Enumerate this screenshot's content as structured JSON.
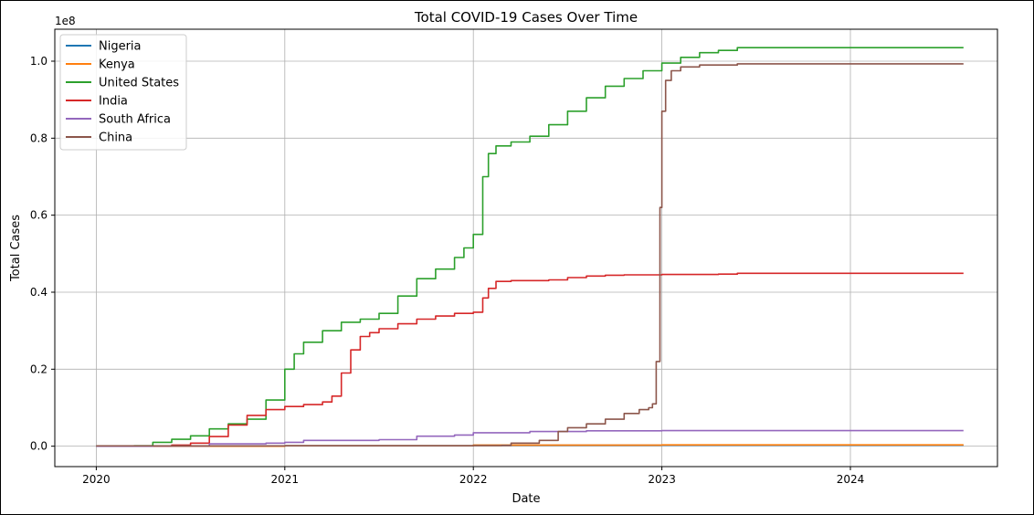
{
  "chart_data": {
    "type": "line",
    "title": "Total COVID-19 Cases Over Time",
    "xlabel": "Date",
    "ylabel": "Total Cases",
    "y_scale_label": "1e8",
    "xlim": [
      2019.78,
      2024.78
    ],
    "ylim": [
      -0.053,
      1.083
    ],
    "x_ticks": [
      2020,
      2021,
      2022,
      2023,
      2024
    ],
    "x_tick_labels": [
      "2020",
      "2021",
      "2022",
      "2023",
      "2024"
    ],
    "y_ticks": [
      0.0,
      0.2,
      0.4,
      0.6,
      0.8,
      1.0
    ],
    "y_tick_labels": [
      "0.0",
      "0.2",
      "0.4",
      "0.6",
      "0.8",
      "1.0"
    ],
    "grid": true,
    "legend_position": "top-left",
    "series": [
      {
        "name": "Nigeria",
        "color": "#1f77b4",
        "x": [
          2020.0,
          2021.0,
          2022.0,
          2023.0,
          2024.6
        ],
        "y": [
          0.0,
          0.001,
          0.0025,
          0.0027,
          0.0027
        ]
      },
      {
        "name": "Kenya",
        "color": "#ff7f0e",
        "x": [
          2020.0,
          2021.0,
          2022.0,
          2023.0,
          2024.6
        ],
        "y": [
          0.0,
          0.001,
          0.003,
          0.0034,
          0.0034
        ]
      },
      {
        "name": "United States",
        "color": "#2ca02c",
        "x": [
          2020.0,
          2020.2,
          2020.3,
          2020.4,
          2020.5,
          2020.6,
          2020.7,
          2020.8,
          2020.9,
          2021.0,
          2021.05,
          2021.1,
          2021.2,
          2021.3,
          2021.4,
          2021.5,
          2021.6,
          2021.7,
          2021.8,
          2021.9,
          2021.95,
          2022.0,
          2022.05,
          2022.08,
          2022.12,
          2022.2,
          2022.3,
          2022.4,
          2022.5,
          2022.6,
          2022.7,
          2022.8,
          2022.9,
          2023.0,
          2023.1,
          2023.2,
          2023.3,
          2023.4,
          2024.6
        ],
        "y": [
          0.0,
          0.001,
          0.01,
          0.018,
          0.027,
          0.045,
          0.058,
          0.07,
          0.12,
          0.2,
          0.24,
          0.27,
          0.3,
          0.322,
          0.33,
          0.345,
          0.39,
          0.435,
          0.46,
          0.49,
          0.515,
          0.55,
          0.7,
          0.76,
          0.78,
          0.79,
          0.805,
          0.835,
          0.87,
          0.905,
          0.935,
          0.955,
          0.975,
          0.995,
          1.01,
          1.022,
          1.028,
          1.035,
          1.035
        ]
      },
      {
        "name": "India",
        "color": "#d62728",
        "x": [
          2020.0,
          2020.2,
          2020.4,
          2020.5,
          2020.6,
          2020.7,
          2020.8,
          2020.9,
          2021.0,
          2021.1,
          2021.2,
          2021.25,
          2021.3,
          2021.35,
          2021.4,
          2021.45,
          2021.5,
          2021.6,
          2021.7,
          2021.8,
          2021.9,
          2022.0,
          2022.05,
          2022.08,
          2022.12,
          2022.2,
          2022.4,
          2022.5,
          2022.6,
          2022.7,
          2022.8,
          2023.0,
          2023.3,
          2023.4,
          2024.6
        ],
        "y": [
          0.0,
          0.0005,
          0.003,
          0.008,
          0.025,
          0.055,
          0.08,
          0.095,
          0.103,
          0.108,
          0.115,
          0.13,
          0.19,
          0.25,
          0.285,
          0.295,
          0.305,
          0.318,
          0.33,
          0.338,
          0.345,
          0.348,
          0.385,
          0.41,
          0.428,
          0.43,
          0.432,
          0.438,
          0.442,
          0.444,
          0.445,
          0.446,
          0.447,
          0.449,
          0.449
        ]
      },
      {
        "name": "South Africa",
        "color": "#9467bd",
        "x": [
          2020.0,
          2020.3,
          2020.6,
          2020.9,
          2021.0,
          2021.1,
          2021.5,
          2021.7,
          2021.9,
          2022.0,
          2022.3,
          2022.6,
          2023.0,
          2024.6
        ],
        "y": [
          0.0,
          0.0005,
          0.006,
          0.008,
          0.01,
          0.015,
          0.017,
          0.026,
          0.029,
          0.035,
          0.038,
          0.04,
          0.0405,
          0.0405
        ]
      },
      {
        "name": "China",
        "color": "#8c564b",
        "x": [
          2020.0,
          2021.0,
          2022.0,
          2022.15,
          2022.2,
          2022.35,
          2022.45,
          2022.5,
          2022.6,
          2022.7,
          2022.8,
          2022.88,
          2022.93,
          2022.95,
          2022.97,
          2022.99,
          2023.0,
          2023.02,
          2023.05,
          2023.1,
          2023.2,
          2023.4,
          2024.6
        ],
        "y": [
          0.0009,
          0.001,
          0.0015,
          0.002,
          0.008,
          0.015,
          0.038,
          0.048,
          0.058,
          0.07,
          0.085,
          0.095,
          0.1,
          0.11,
          0.22,
          0.62,
          0.87,
          0.95,
          0.975,
          0.985,
          0.99,
          0.993,
          0.993
        ]
      }
    ]
  }
}
